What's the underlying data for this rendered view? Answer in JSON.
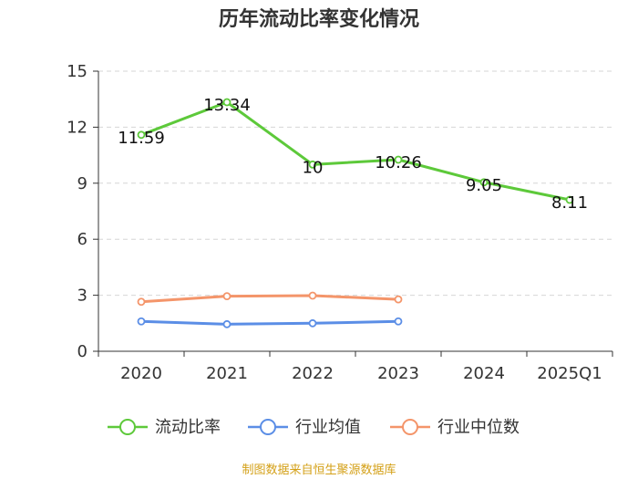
{
  "chart_data": {
    "type": "line",
    "title": "历年流动比率变化情况",
    "categories": [
      "2020",
      "2021",
      "2022",
      "2023",
      "2024",
      "2025Q1"
    ],
    "ylim": [
      0,
      15
    ],
    "yticks": [
      "0",
      "3",
      "6",
      "9",
      "12",
      "15"
    ],
    "grid": true,
    "legend_position": "bottom",
    "series": [
      {
        "name": "流动比率",
        "color": "#5dc93a",
        "values": [
          11.59,
          13.34,
          10,
          10.26,
          9.05,
          8.11
        ],
        "labels": [
          "11.59",
          "13.34",
          "10",
          "10.26",
          "9.05",
          "8.11"
        ]
      },
      {
        "name": "行业均值",
        "color": "#5b8ee6",
        "values": [
          1.6,
          1.45,
          1.5,
          1.6,
          null,
          null
        ]
      },
      {
        "name": "行业中位数",
        "color": "#f4956a",
        "values": [
          2.65,
          2.95,
          2.98,
          2.78,
          null,
          null
        ]
      }
    ]
  },
  "source": "制图数据来自恒生聚源数据库"
}
